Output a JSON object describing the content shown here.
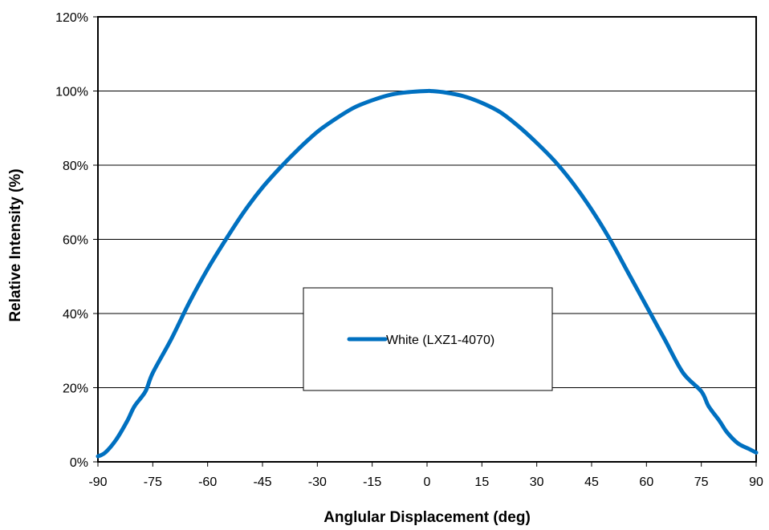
{
  "chart_data": {
    "type": "line",
    "title": "",
    "xlabel": "Anglular Displacement (deg)",
    "ylabel": "Relative Intensity (%)",
    "xlim": [
      -90,
      90
    ],
    "ylim": [
      0,
      120
    ],
    "x_ticks": [
      -90,
      -75,
      -60,
      -45,
      -30,
      -15,
      0,
      15,
      30,
      45,
      60,
      75,
      90
    ],
    "x_tick_labels": [
      "-90",
      "-75",
      "-60",
      "-45",
      "-30",
      "-15",
      "0",
      "15",
      "30",
      "45",
      "60",
      "75",
      "90"
    ],
    "y_ticks": [
      0,
      20,
      40,
      60,
      80,
      100,
      120
    ],
    "y_tick_labels": [
      "0%",
      "20%",
      "40%",
      "60%",
      "80%",
      "100%",
      "120%"
    ],
    "grid": "horizontal",
    "legend_position": "center",
    "series": [
      {
        "name": "White (LXZ1-4070)",
        "color": "#0070C0",
        "x": [
          -90,
          -88,
          -85,
          -82,
          -80,
          -77,
          -75,
          -70,
          -65,
          -60,
          -55,
          -50,
          -45,
          -40,
          -35,
          -30,
          -25,
          -20,
          -15,
          -10,
          -5,
          0,
          1,
          5,
          10,
          15,
          20,
          25,
          30,
          35,
          40,
          45,
          50,
          55,
          60,
          65,
          70,
          75,
          77,
          80,
          82,
          85,
          88,
          90
        ],
        "values": [
          1.5,
          2.5,
          6,
          11,
          15,
          19,
          24,
          33,
          43,
          52,
          60,
          67.5,
          74,
          79.5,
          84.5,
          89,
          92.5,
          95.5,
          97.5,
          99,
          99.7,
          100,
          100,
          99.6,
          98.6,
          96.8,
          94.3,
          90.5,
          86,
          81,
          75,
          68,
          60,
          51,
          42,
          33,
          24,
          19,
          15,
          11,
          8,
          5,
          3.5,
          2.5
        ]
      }
    ]
  }
}
